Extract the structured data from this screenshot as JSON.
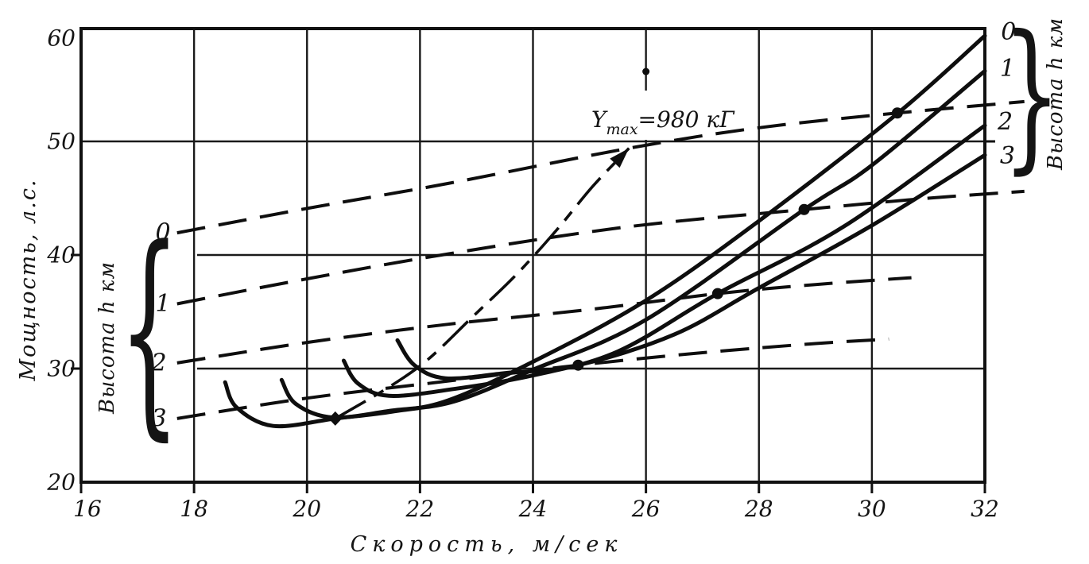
{
  "figure": {
    "background": "#ffffff",
    "ink": "#141414"
  },
  "axes": {
    "x": {
      "title": "Скорость, м/сек",
      "ticks": [
        "16",
        "18",
        "20",
        "22",
        "24",
        "26",
        "28",
        "30",
        "32"
      ],
      "lim": [
        16,
        32
      ]
    },
    "y": {
      "title": "Мощность, л.с.",
      "ticks": [
        "20",
        "30",
        "40",
        "50",
        "60"
      ],
      "lim": [
        20,
        60
      ]
    }
  },
  "groups": {
    "left": {
      "title": "Высота h км",
      "brace": "{",
      "labels": [
        "0",
        "1",
        "2",
        "3"
      ]
    },
    "right": {
      "title": "Высота h км",
      "brace": "}",
      "labels": [
        "0",
        "1",
        "2",
        "3"
      ]
    }
  },
  "annotation": {
    "main": "Y",
    "sub": "max",
    "value": "=980 кГ"
  },
  "chart_data": {
    "type": "line",
    "title": "",
    "xlabel": "Скорость, м/сек",
    "ylabel": "Мощность, л.с.",
    "xlim": [
      16,
      32
    ],
    "ylim": [
      20,
      60
    ],
    "grid": true,
    "legend_position": "curve-end-labels",
    "series": [
      {
        "name": "power_required_h0",
        "altitude_km": 0,
        "style": "solid",
        "points": [
          [
            18.55,
            28.8
          ],
          [
            18.75,
            26.6
          ],
          [
            19.4,
            24.95
          ],
          [
            20.5,
            25.6
          ],
          [
            21.5,
            26.2
          ],
          [
            22.5,
            27.2
          ],
          [
            24,
            30.6
          ],
          [
            26,
            36.0
          ],
          [
            28,
            43.0
          ],
          [
            30.45,
            52.45
          ],
          [
            32,
            59.3
          ]
        ]
      },
      {
        "name": "power_required_h1",
        "altitude_km": 1,
        "style": "solid",
        "points": [
          [
            19.55,
            29.0
          ],
          [
            19.8,
            26.9
          ],
          [
            20.45,
            25.7
          ],
          [
            21.5,
            26.3
          ],
          [
            22.6,
            27.1
          ],
          [
            24,
            29.9
          ],
          [
            26,
            34.3
          ],
          [
            28.8,
            44.0
          ],
          [
            30,
            47.9
          ],
          [
            32,
            56.2
          ]
        ]
      },
      {
        "name": "power_required_h2",
        "altitude_km": 2,
        "style": "solid",
        "points": [
          [
            20.65,
            30.7
          ],
          [
            20.9,
            28.7
          ],
          [
            21.45,
            27.6
          ],
          [
            22.6,
            28.2
          ],
          [
            24,
            29.4
          ],
          [
            25.5,
            31.5
          ],
          [
            27.27,
            36.6
          ],
          [
            29.5,
            42.5
          ],
          [
            32,
            51.4
          ]
        ]
      },
      {
        "name": "power_required_h3",
        "altitude_km": 3,
        "style": "solid",
        "points": [
          [
            21.6,
            32.5
          ],
          [
            21.9,
            30.3
          ],
          [
            22.45,
            29.15
          ],
          [
            23.5,
            29.6
          ],
          [
            24.8,
            30.3
          ],
          [
            26.5,
            33.0
          ],
          [
            28,
            37.1
          ],
          [
            30,
            42.6
          ],
          [
            32,
            48.8
          ]
        ]
      },
      {
        "name": "power_available_h0",
        "altitude_km": 0,
        "style": "dashed",
        "points": [
          [
            17.7,
            41.95
          ],
          [
            20,
            44.1
          ],
          [
            22.5,
            46.3
          ],
          [
            25.7,
            49.4
          ],
          [
            28,
            51.2
          ],
          [
            30.45,
            52.5
          ],
          [
            32.7,
            53.5
          ]
        ]
      },
      {
        "name": "power_available_h1",
        "altitude_km": 1,
        "style": "dashed",
        "points": [
          [
            17.7,
            35.7
          ],
          [
            20,
            37.9
          ],
          [
            22.5,
            40.1
          ],
          [
            25.7,
            42.5
          ],
          [
            28.8,
            44.0
          ],
          [
            31,
            45.0
          ],
          [
            32.7,
            45.6
          ]
        ]
      },
      {
        "name": "power_available_h2",
        "altitude_km": 2,
        "style": "dashed",
        "points": [
          [
            17.7,
            30.5
          ],
          [
            20,
            32.3
          ],
          [
            22.5,
            33.9
          ],
          [
            25,
            35.2
          ],
          [
            27.27,
            36.6
          ],
          [
            29,
            37.4
          ],
          [
            30.7,
            38.0
          ]
        ]
      },
      {
        "name": "power_available_h3",
        "altitude_km": 3,
        "style": "dashed",
        "points": [
          [
            17.7,
            25.6
          ],
          [
            20,
            27.4
          ],
          [
            22.5,
            28.9
          ],
          [
            24.8,
            30.3
          ],
          [
            27,
            31.4
          ],
          [
            29,
            32.2
          ],
          [
            30.3,
            32.6
          ]
        ]
      },
      {
        "name": "climb_line_to_Ymax",
        "altitude_km": null,
        "style": "dashdot",
        "points": [
          [
            20.5,
            25.6
          ],
          [
            21.46,
            28.4
          ],
          [
            22.14,
            30.8
          ],
          [
            22.94,
            34.6
          ],
          [
            23.71,
            38.3
          ],
          [
            24.42,
            42.2
          ],
          [
            25.05,
            46.0
          ],
          [
            25.7,
            49.4
          ]
        ]
      }
    ],
    "markers": [
      {
        "v": 20.5,
        "p": 25.6,
        "shape": "diamond"
      },
      {
        "v": 24.8,
        "p": 30.3,
        "shape": "dot"
      },
      {
        "v": 27.27,
        "p": 36.6,
        "shape": "dot"
      },
      {
        "v": 28.8,
        "p": 44.0,
        "shape": "dot"
      },
      {
        "v": 30.45,
        "p": 52.5,
        "shape": "dot"
      },
      {
        "v": 26.0,
        "p": 56.15,
        "shape": "small-dot"
      }
    ],
    "arrow": {
      "tip": [
        25.7,
        49.4
      ],
      "tail": [
        25.05,
        46.0
      ],
      "label": "Ymax=980 кГ"
    },
    "left_label_positions": [
      [
        17.45,
        41.95
      ],
      [
        17.45,
        35.7
      ],
      [
        17.38,
        30.5
      ],
      [
        17.38,
        25.6
      ]
    ],
    "right_label_positions": [
      [
        32.42,
        59.6
      ],
      [
        32.4,
        56.4
      ],
      [
        32.36,
        51.7
      ],
      [
        32.4,
        48.7
      ]
    ]
  }
}
